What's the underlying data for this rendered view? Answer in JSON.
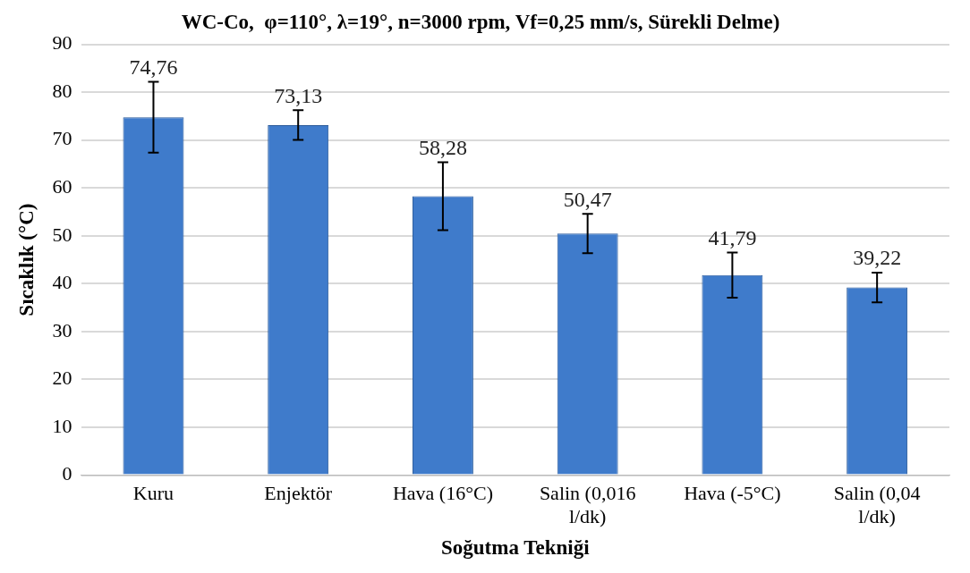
{
  "chart_data": {
    "type": "bar",
    "title": "WC-Co,  φ=110°, λ=19°, n=3000 rpm, Vf=0,25 mm/s, Sürekli Delme)",
    "xlabel": "Soğutma Tekniği",
    "ylabel": "Sıcaklık (°C)",
    "categories": [
      "Kuru",
      "Enjektör",
      "Hava (16°C)",
      "Salin (0,016 l/dk)",
      "Hava (-5°C)",
      "Salin (0,04 l/dk)"
    ],
    "values": [
      74.76,
      73.13,
      58.28,
      50.47,
      41.79,
      39.22
    ],
    "errors": [
      7.4,
      3.1,
      7.1,
      4.1,
      4.7,
      3.1
    ],
    "value_labels": [
      "74,76",
      "73,13",
      "58,28",
      "50,47",
      "41,79",
      "39,22"
    ],
    "color": "#3f7bcb",
    "ylim": [
      0,
      90
    ],
    "yticks": [
      0,
      10,
      20,
      30,
      40,
      50,
      60,
      70,
      80,
      90
    ],
    "grid": "y",
    "legend": false
  }
}
